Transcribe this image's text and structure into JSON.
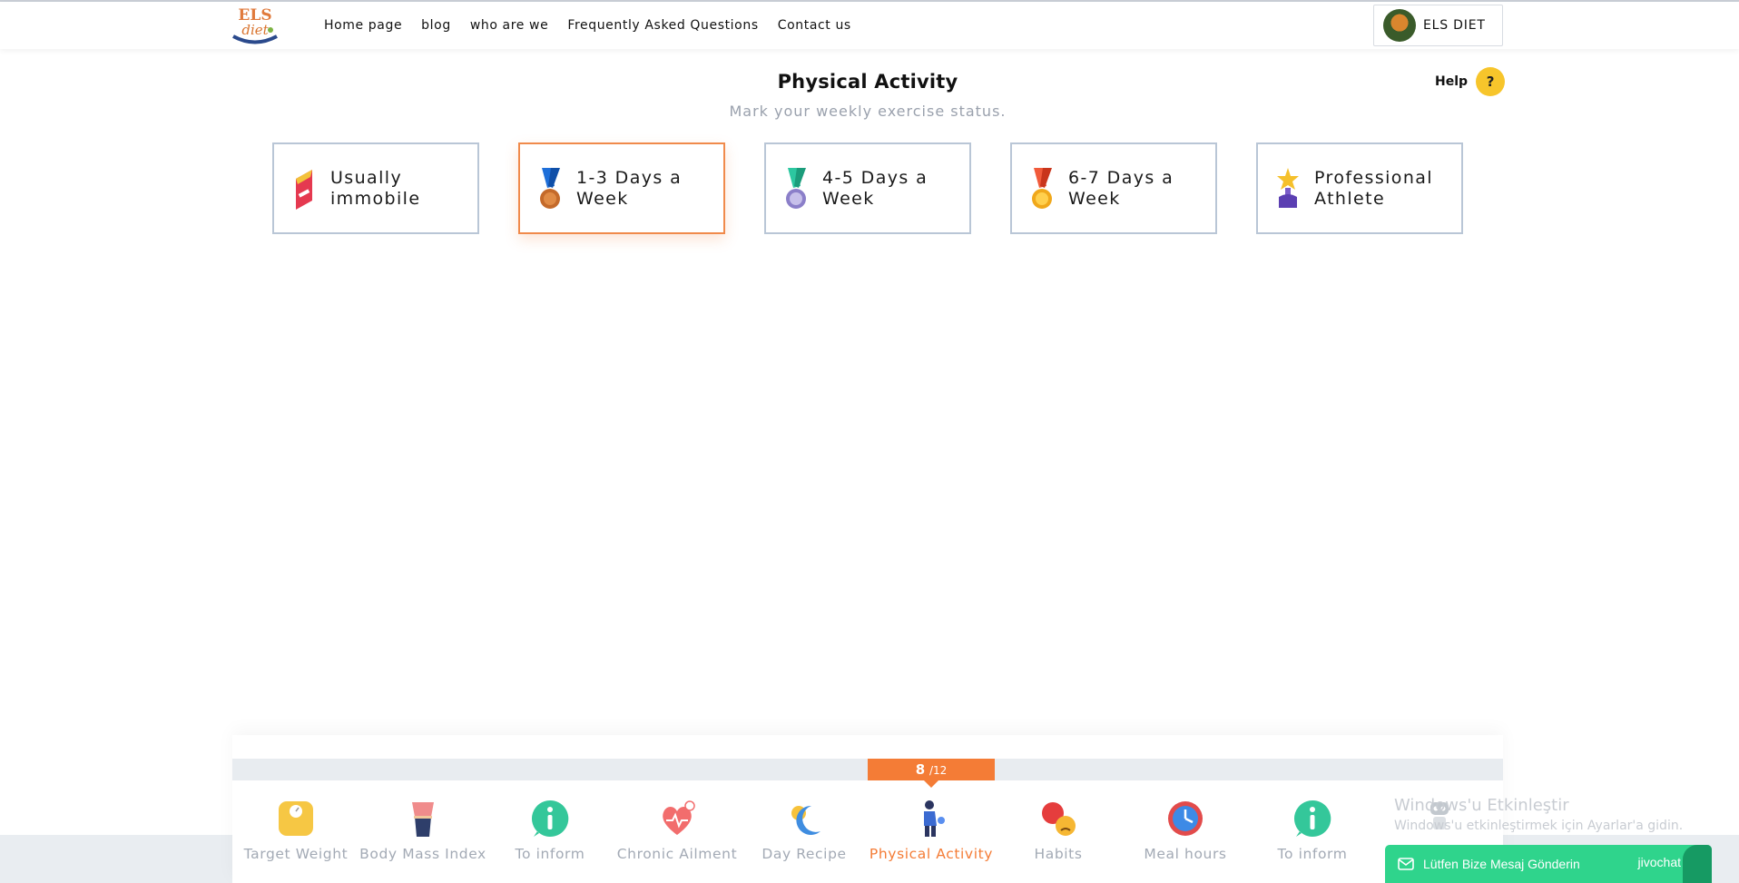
{
  "header": {
    "logo_text": "ELS diet",
    "nav": [
      {
        "label": "Home page"
      },
      {
        "label": "blog"
      },
      {
        "label": "who are we"
      },
      {
        "label": "Frequently Asked Questions"
      },
      {
        "label": "Contact us"
      }
    ],
    "profile_name": "ELS DIET"
  },
  "main": {
    "title": "Physical Activity",
    "subtitle": "Mark your weekly exercise status.",
    "help_label": "Help",
    "help_icon": "?",
    "options": [
      {
        "label": "Usually immobile",
        "icon": "pennant-icon",
        "selected": false
      },
      {
        "label": "1-3 Days a Week",
        "icon": "bronze-medal-icon",
        "selected": true
      },
      {
        "label": "4-5 Days a Week",
        "icon": "silver-medal-icon",
        "selected": false
      },
      {
        "label": "6-7 Days a Week",
        "icon": "gold-medal-icon",
        "selected": false
      },
      {
        "label": "Professional Athlete",
        "icon": "trophy-icon",
        "selected": false
      }
    ]
  },
  "progress": {
    "current": "8",
    "total": "/12"
  },
  "steps": [
    {
      "label": "Target Weight",
      "icon": "scale-icon"
    },
    {
      "label": "Body Mass Index",
      "icon": "body-icon"
    },
    {
      "label": "To inform",
      "icon": "info-icon"
    },
    {
      "label": "Chronic Ailment",
      "icon": "heart-icon"
    },
    {
      "label": "Day Recipe",
      "icon": "sun-moon-icon"
    },
    {
      "label": "Physical Activity",
      "icon": "exercise-icon",
      "active": true
    },
    {
      "label": "Habits",
      "icon": "faces-icon"
    },
    {
      "label": "Meal hours",
      "icon": "clock-icon"
    },
    {
      "label": "To inform",
      "icon": "info-icon"
    }
  ],
  "watermark": {
    "line1": "Windows'u Etkinleştir",
    "line2": "Windows'u etkinleştirmek için Ayarlar'a gidin."
  },
  "chat": {
    "label": "Lütfen Bize Mesaj Gönderin",
    "brand": "jivochat"
  },
  "colors": {
    "accent": "#f47c36",
    "option_border": "#b9c6d6",
    "chat_green": "#2fd48c",
    "help_yellow": "#f7c52b"
  }
}
